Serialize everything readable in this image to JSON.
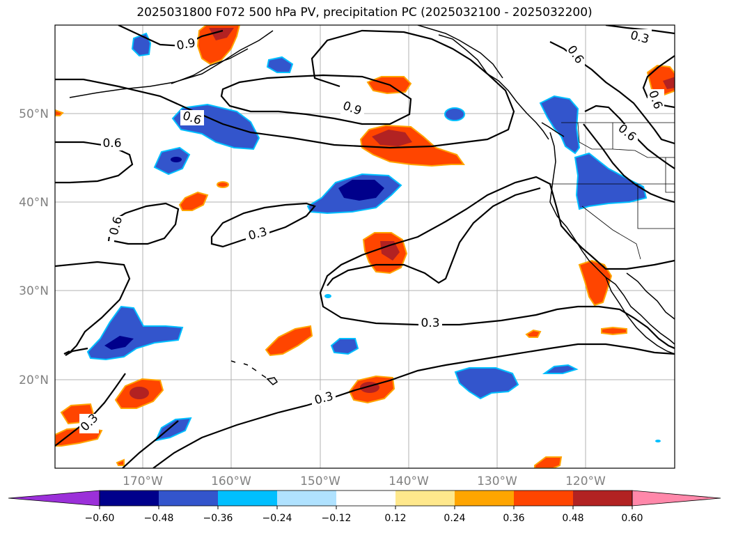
{
  "title": "2025031800 F072 500 hPa PV, precipitation PC (2025032100 - 2025032200)",
  "latitude_labels": [
    "50°N",
    "40°N",
    "30°N",
    "20°N"
  ],
  "longitude_labels": [
    "170°W",
    "160°W",
    "150°W",
    "140°W",
    "130°W",
    "120°W"
  ],
  "contour_labels": [
    "0.9",
    "0.9",
    "0.6",
    "0.6",
    "0.6",
    "0.3",
    "0.3",
    "0.3",
    "0.3",
    "0.6",
    "0.6",
    "0.3",
    "0.6"
  ],
  "colorbar": {
    "labels": [
      "−0.60",
      "−0.48",
      "−0.36",
      "−0.24",
      "−0.12",
      "0.12",
      "0.24",
      "0.36",
      "0.48",
      "0.60"
    ],
    "colors": [
      "#9b30d9",
      "#00008b",
      "#3355cc",
      "#00bfff",
      "#b0e2ff",
      "#ffffff",
      "#ffe88c",
      "#ffa500",
      "#ff4500",
      "#b22222",
      "#ff88aa"
    ]
  },
  "map": {
    "lat_range": [
      10,
      60
    ],
    "lon_range": [
      -180,
      -110
    ],
    "positive_color": "#ff4500",
    "negative_color": "#3355cc"
  }
}
